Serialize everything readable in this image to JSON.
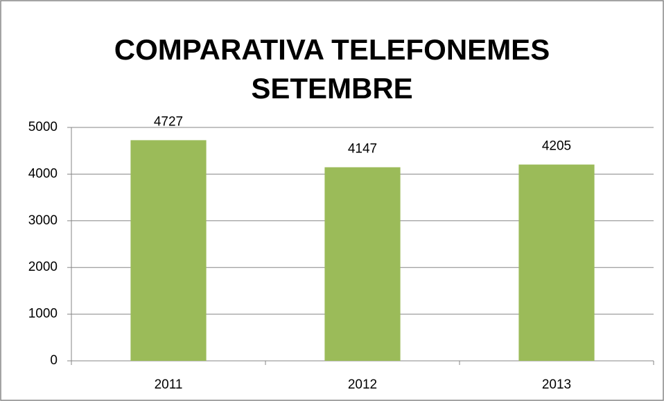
{
  "chart_data": {
    "type": "bar",
    "title": "COMPARATIVA TELEFONEMES SETEMBRE",
    "categories": [
      "2011",
      "2012",
      "2013"
    ],
    "values": [
      4727,
      4147,
      4205
    ],
    "color": "#9bbb59",
    "ylim": [
      0,
      5000
    ],
    "yticks": [
      0,
      1000,
      2000,
      3000,
      4000,
      5000
    ],
    "grid": true
  }
}
